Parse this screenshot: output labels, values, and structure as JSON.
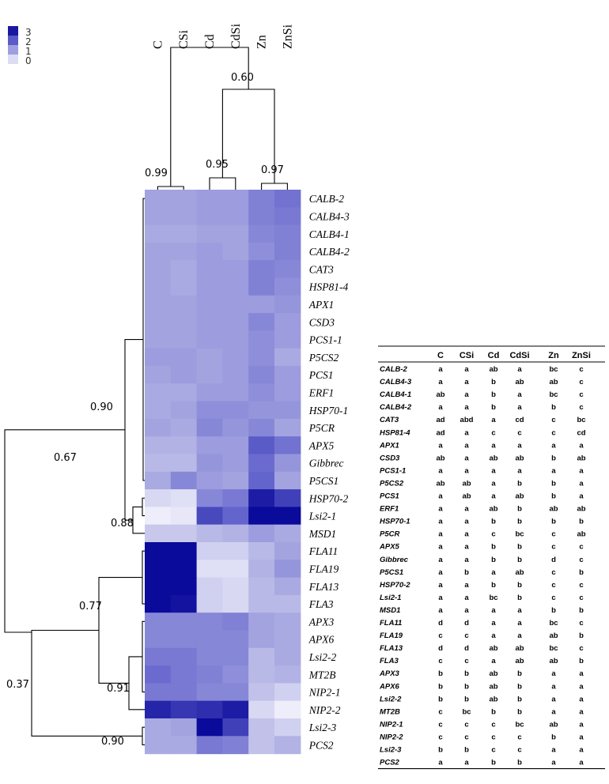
{
  "legend": {
    "labels": [
      "3",
      "2",
      "1",
      "0"
    ],
    "colors": [
      "#1a1aa0",
      "#5a5ac8",
      "#9e9ee0",
      "#dcdcf4"
    ]
  },
  "chart_data": {
    "type": "heatmap",
    "columns": [
      "C",
      "CSi",
      "Cd",
      "CdSi",
      "Zn",
      "ZnSi"
    ],
    "rows": [
      "CALB-2",
      "CALB4-3",
      "CALB4-1",
      "CALB4-2",
      "CAT3",
      "HSP81-4",
      "APX1",
      "CSD3",
      "PCS1-1",
      "P5CS2",
      "PCS1",
      "ERF1",
      "HSP70-1",
      "P5CR",
      "APX5",
      "Gibbrec",
      "P5CS1",
      "HSP70-2",
      "Lsi2-1",
      "MSD1",
      "FLA11",
      "FLA19",
      "FLA13",
      "FLA3",
      "APX3",
      "APX6",
      "Lsi2-2",
      "MT2B",
      "NIP2-1",
      "NIP2-2",
      "Lsi2-3",
      "PCS2"
    ],
    "color_scale": {
      "min": 0,
      "max": 3,
      "ticks": [
        3,
        2,
        1,
        0
      ]
    },
    "values": [
      [
        1.1,
        1.1,
        1.2,
        1.2,
        1.6,
        1.8
      ],
      [
        1.1,
        1.1,
        1.2,
        1.2,
        1.6,
        1.7
      ],
      [
        1.0,
        1.0,
        1.1,
        1.1,
        1.5,
        1.6
      ],
      [
        1.1,
        1.1,
        1.2,
        1.1,
        1.4,
        1.6
      ],
      [
        1.1,
        1.0,
        1.2,
        1.2,
        1.6,
        1.5
      ],
      [
        1.1,
        1.0,
        1.2,
        1.2,
        1.6,
        1.4
      ],
      [
        1.1,
        1.1,
        1.2,
        1.2,
        1.2,
        1.3
      ],
      [
        1.1,
        1.1,
        1.2,
        1.2,
        1.5,
        1.2
      ],
      [
        1.1,
        1.1,
        1.2,
        1.2,
        1.4,
        1.2
      ],
      [
        1.2,
        1.2,
        1.1,
        1.2,
        1.4,
        1.0
      ],
      [
        1.1,
        1.2,
        1.1,
        1.2,
        1.5,
        1.2
      ],
      [
        1.0,
        1.0,
        1.2,
        1.2,
        1.4,
        1.2
      ],
      [
        1.0,
        1.1,
        1.4,
        1.4,
        1.3,
        1.3
      ],
      [
        1.1,
        1.0,
        1.5,
        1.3,
        1.5,
        1.1
      ],
      [
        0.9,
        0.9,
        1.2,
        1.2,
        2.1,
        1.8
      ],
      [
        0.8,
        0.8,
        1.3,
        1.2,
        1.9,
        1.3
      ],
      [
        1.0,
        1.5,
        1.2,
        1.1,
        2.0,
        1.1
      ],
      [
        0.4,
        0.3,
        1.5,
        1.7,
        2.8,
        2.4
      ],
      [
        0.1,
        0.2,
        2.3,
        2.0,
        3.0,
        3.0
      ],
      [
        0.6,
        0.6,
        0.8,
        0.9,
        1.2,
        1.0
      ],
      [
        3.0,
        3.0,
        0.5,
        0.5,
        0.8,
        1.1
      ],
      [
        3.0,
        3.0,
        0.3,
        0.3,
        0.9,
        1.3
      ],
      [
        3.0,
        3.0,
        0.5,
        0.4,
        0.8,
        1.0
      ],
      [
        3.0,
        2.9,
        0.5,
        0.4,
        0.8,
        0.8
      ],
      [
        1.5,
        1.5,
        1.5,
        1.6,
        1.1,
        1.0
      ],
      [
        1.5,
        1.5,
        1.5,
        1.5,
        1.1,
        1.0
      ],
      [
        1.7,
        1.7,
        1.5,
        1.5,
        0.8,
        1.0
      ],
      [
        1.9,
        1.7,
        1.6,
        1.4,
        0.8,
        0.9
      ],
      [
        1.7,
        1.7,
        1.5,
        1.5,
        0.7,
        0.5
      ],
      [
        2.7,
        2.5,
        2.6,
        2.8,
        0.4,
        0.1
      ],
      [
        1.0,
        1.1,
        3.0,
        2.4,
        0.7,
        0.5
      ],
      [
        1.0,
        1.0,
        1.7,
        1.6,
        0.7,
        0.9
      ]
    ],
    "dendrogram_labels": [
      "0.99",
      "0.95",
      "0.97",
      "0.60",
      "0.90",
      "0.67",
      "0.88",
      "0.77",
      "0.91",
      "0.37",
      "0.90"
    ]
  },
  "table": {
    "headers": [
      "",
      "C",
      "CSi",
      "Cd",
      "CdSi",
      "Zn",
      "ZnSi"
    ],
    "rows": [
      [
        "CALB-2",
        "a",
        "a",
        "ab",
        "a",
        "bc",
        "c"
      ],
      [
        "CALB4-3",
        "a",
        "a",
        "b",
        "ab",
        "ab",
        "c"
      ],
      [
        "CALB4-1",
        "ab",
        "a",
        "b",
        "a",
        "bc",
        "c"
      ],
      [
        "CALB4-2",
        "a",
        "a",
        "b",
        "a",
        "b",
        "c"
      ],
      [
        "CAT3",
        "ad",
        "abd",
        "a",
        "cd",
        "c",
        "bc"
      ],
      [
        "HSP81-4",
        "ad",
        "a",
        "c",
        "c",
        "c",
        "cd"
      ],
      [
        "APX1",
        "a",
        "a",
        "a",
        "a",
        "a",
        "a"
      ],
      [
        "CSD3",
        "ab",
        "a",
        "ab",
        "ab",
        "b",
        "ab"
      ],
      [
        "PCS1-1",
        "a",
        "a",
        "a",
        "a",
        "a",
        "a"
      ],
      [
        "P5CS2",
        "ab",
        "ab",
        "a",
        "b",
        "b",
        "a"
      ],
      [
        "PCS1",
        "a",
        "ab",
        "a",
        "ab",
        "b",
        "a"
      ],
      [
        "ERF1",
        "a",
        "a",
        "ab",
        "b",
        "ab",
        "ab"
      ],
      [
        "HSP70-1",
        "a",
        "a",
        "b",
        "b",
        "b",
        "b"
      ],
      [
        "P5CR",
        "a",
        "a",
        "c",
        "bc",
        "c",
        "ab"
      ],
      [
        "APX5",
        "a",
        "a",
        "b",
        "b",
        "c",
        "c"
      ],
      [
        "Gibbrec",
        "a",
        "a",
        "b",
        "b",
        "d",
        "c"
      ],
      [
        "P5CS1",
        "a",
        "b",
        "a",
        "ab",
        "c",
        "b"
      ],
      [
        "HSP70-2",
        "a",
        "a",
        "b",
        "b",
        "c",
        "c"
      ],
      [
        "Lsi2-1",
        "a",
        "a",
        "bc",
        "b",
        "c",
        "c"
      ],
      [
        "MSD1",
        "a",
        "a",
        "a",
        "a",
        "b",
        "b"
      ],
      [
        "FLA11",
        "d",
        "d",
        "a",
        "a",
        "bc",
        "c"
      ],
      [
        "FLA19",
        "c",
        "c",
        "a",
        "a",
        "ab",
        "b"
      ],
      [
        "FLA13",
        "d",
        "d",
        "ab",
        "ab",
        "bc",
        "c"
      ],
      [
        "FLA3",
        "c",
        "c",
        "a",
        "ab",
        "ab",
        "b"
      ],
      [
        "APX3",
        "b",
        "b",
        "ab",
        "b",
        "a",
        "a"
      ],
      [
        "APX6",
        "b",
        "b",
        "ab",
        "b",
        "a",
        "a"
      ],
      [
        "Lsi2-2",
        "b",
        "b",
        "ab",
        "b",
        "a",
        "a"
      ],
      [
        "MT2B",
        "c",
        "bc",
        "b",
        "b",
        "a",
        "a"
      ],
      [
        "NIP2-1",
        "c",
        "c",
        "c",
        "bc",
        "ab",
        "a"
      ],
      [
        "NIP2-2",
        "c",
        "c",
        "c",
        "c",
        "b",
        "a"
      ],
      [
        "Lsi2-3",
        "b",
        "b",
        "c",
        "c",
        "a",
        "a"
      ],
      [
        "PCS2",
        "a",
        "a",
        "b",
        "b",
        "a",
        "a"
      ]
    ]
  }
}
